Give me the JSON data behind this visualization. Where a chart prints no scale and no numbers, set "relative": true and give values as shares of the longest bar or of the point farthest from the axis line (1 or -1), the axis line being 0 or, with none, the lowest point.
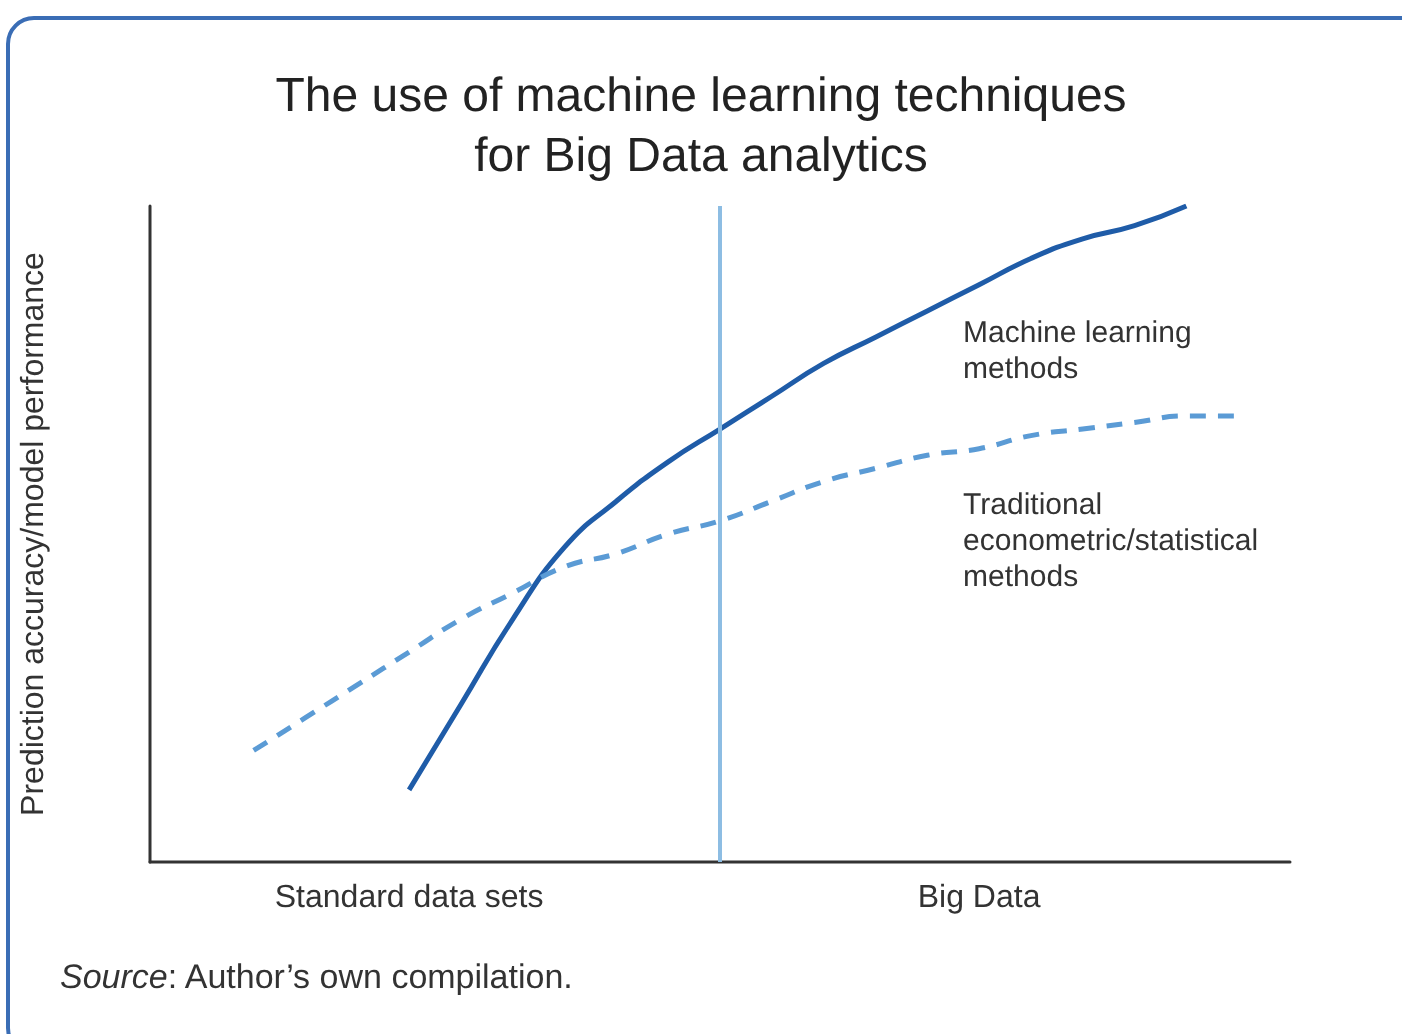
{
  "chart_data": {
    "type": "line",
    "title": "The use of machine learning techniques\nfor Big Data analytics",
    "ylabel": "Prediction accuracy/model performance",
    "categories": [
      null,
      null,
      null,
      null,
      null,
      "Standard data sets",
      null,
      null,
      null,
      null,
      null,
      null,
      null,
      null,
      null,
      null,
      "Big Data",
      null,
      null,
      null,
      null,
      null,
      null
    ],
    "relative": true,
    "series": [
      {
        "name": "Machine learning methods",
        "color": "#1f5ca8",
        "line_style": "solid",
        "values": [
          null,
          null,
          null,
          null,
          null,
          0.11,
          0.24,
          0.37,
          0.48,
          0.55,
          0.61,
          0.66,
          0.71,
          0.76,
          0.8,
          0.84,
          0.88,
          0.92,
          0.95,
          0.97,
          1.0,
          null,
          null
        ]
      },
      {
        "name": "Traditional econometric/statistical methods",
        "color": "#5b9bd5",
        "line_style": "dashed",
        "values": [
          null,
          null,
          0.17,
          0.22,
          0.27,
          0.32,
          0.37,
          0.41,
          0.45,
          0.47,
          0.5,
          0.52,
          0.55,
          0.58,
          0.6,
          0.62,
          0.63,
          0.65,
          0.66,
          0.67,
          0.68,
          0.68,
          null
        ]
      }
    ],
    "marker": "none",
    "grid": false,
    "legend": false,
    "annotations": [
      "Source: Author’s own compilation."
    ]
  }
}
